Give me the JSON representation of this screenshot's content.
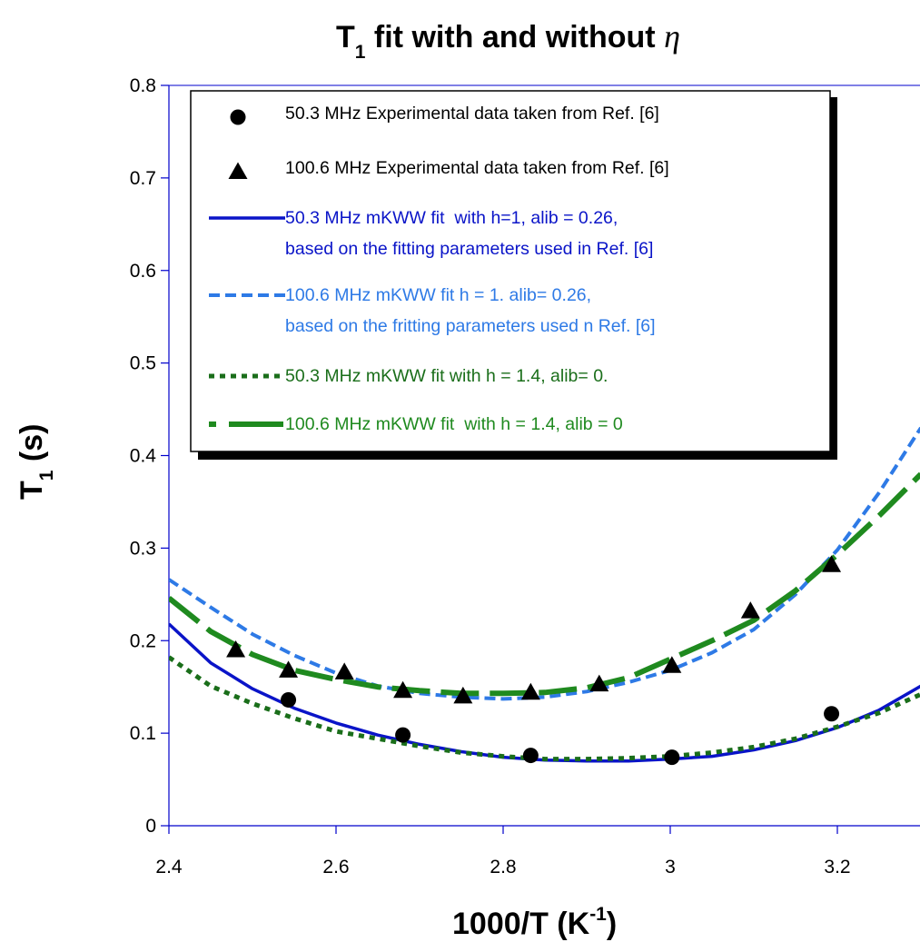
{
  "chart_data": {
    "type": "scatter",
    "title": {
      "main": "T",
      "sub": "1",
      "rest": " fit with and without ",
      "greek": "η"
    },
    "xlabel": {
      "main": "1000/T (K",
      "sup": "-1",
      "end": ")"
    },
    "ylabel": {
      "main": "T",
      "sub": "1",
      "end": " (s)"
    },
    "xlim": [
      2.4,
      3.3
    ],
    "ylim": [
      0,
      0.8
    ],
    "xticks": [
      {
        "value": 2.4,
        "label": "2.4"
      },
      {
        "value": 2.6,
        "label": "2.6"
      },
      {
        "value": 2.8,
        "label": "2.8"
      },
      {
        "value": 3.0,
        "label": "3"
      },
      {
        "value": 3.2,
        "label": "3.2"
      }
    ],
    "yticks": [
      {
        "value": 0,
        "label": "0"
      },
      {
        "value": 0.1,
        "label": "0.1"
      },
      {
        "value": 0.2,
        "label": "0.2"
      },
      {
        "value": 0.3,
        "label": "0.3"
      },
      {
        "value": 0.4,
        "label": "0.4"
      },
      {
        "value": 0.5,
        "label": "0.5"
      },
      {
        "value": 0.6,
        "label": "0.6"
      },
      {
        "value": 0.7,
        "label": "0.7"
      },
      {
        "value": 0.8,
        "label": "0.8"
      }
    ],
    "grid": false,
    "legend_position": "top",
    "series": [
      {
        "kind": "points",
        "marker": "circle",
        "color": "#000000",
        "legend": [
          "50.3 MHz Experimental data taken from Ref. [6]"
        ],
        "x": [
          2.543,
          2.68,
          2.833,
          3.002,
          3.193
        ],
        "y": [
          0.136,
          0.098,
          0.076,
          0.074,
          0.121
        ]
      },
      {
        "kind": "points",
        "marker": "triangle",
        "color": "#000000",
        "legend": [
          "100.6 MHz Experimental data taken from Ref. [6]"
        ],
        "x": [
          2.48,
          2.543,
          2.61,
          2.68,
          2.752,
          2.833,
          2.915,
          3.002,
          3.096,
          3.193
        ],
        "y": [
          0.19,
          0.168,
          0.166,
          0.146,
          0.14,
          0.144,
          0.153,
          0.173,
          0.232,
          0.282
        ]
      },
      {
        "kind": "line",
        "style": "solid",
        "color": "#0a14c8",
        "legend": [
          "50.3 MHz mKWW fit  with h=1, alib = 0.26,",
          "based on the fitting parameters used in Ref. [6]"
        ],
        "x": [
          2.4,
          2.45,
          2.5,
          2.55,
          2.6,
          2.65,
          2.7,
          2.75,
          2.8,
          2.85,
          2.9,
          2.95,
          3.0,
          3.05,
          3.1,
          3.15,
          3.2,
          3.25,
          3.3
        ],
        "y": [
          0.218,
          0.176,
          0.148,
          0.127,
          0.111,
          0.098,
          0.088,
          0.08,
          0.074,
          0.071,
          0.07,
          0.07,
          0.072,
          0.075,
          0.082,
          0.092,
          0.106,
          0.125,
          0.151
        ]
      },
      {
        "kind": "line",
        "style": "dashed",
        "color": "#2e7ae6",
        "legend": [
          "100.6 MHz mKWW fit h = 1. alib= 0.26,",
          "based on the fritting parameters used n Ref. [6]"
        ],
        "x": [
          2.4,
          2.45,
          2.5,
          2.55,
          2.6,
          2.65,
          2.7,
          2.75,
          2.8,
          2.85,
          2.9,
          2.95,
          3.0,
          3.05,
          3.1,
          3.15,
          3.2,
          3.25,
          3.3
        ],
        "y": [
          0.266,
          0.236,
          0.207,
          0.184,
          0.165,
          0.151,
          0.143,
          0.139,
          0.137,
          0.139,
          0.145,
          0.155,
          0.168,
          0.187,
          0.212,
          0.25,
          0.298,
          0.36,
          0.43
        ]
      },
      {
        "kind": "line",
        "style": "dotted",
        "color": "#1a6e1a",
        "legend": [
          "50.3 MHz mKWW fit with h = 1.4, alib= 0."
        ],
        "x": [
          2.4,
          2.45,
          2.5,
          2.55,
          2.6,
          2.65,
          2.7,
          2.75,
          2.8,
          2.85,
          2.9,
          2.95,
          3.0,
          3.05,
          3.1,
          3.15,
          3.2,
          3.25,
          3.3
        ],
        "y": [
          0.182,
          0.151,
          0.132,
          0.116,
          0.102,
          0.094,
          0.086,
          0.079,
          0.075,
          0.072,
          0.072,
          0.073,
          0.075,
          0.079,
          0.085,
          0.094,
          0.107,
          0.122,
          0.142
        ]
      },
      {
        "kind": "line",
        "style": "longdash",
        "color": "#1f8a1f",
        "legend": [
          "100.6 MHz mKWW fit  with h = 1.4, alib = 0"
        ],
        "x": [
          2.4,
          2.45,
          2.5,
          2.55,
          2.6,
          2.65,
          2.7,
          2.75,
          2.8,
          2.85,
          2.9,
          2.95,
          3.0,
          3.05,
          3.1,
          3.15,
          3.2,
          3.25,
          3.3
        ],
        "y": [
          0.246,
          0.21,
          0.185,
          0.168,
          0.158,
          0.15,
          0.146,
          0.143,
          0.143,
          0.144,
          0.149,
          0.16,
          0.18,
          0.2,
          0.222,
          0.254,
          0.293,
          0.335,
          0.38
        ]
      }
    ]
  }
}
